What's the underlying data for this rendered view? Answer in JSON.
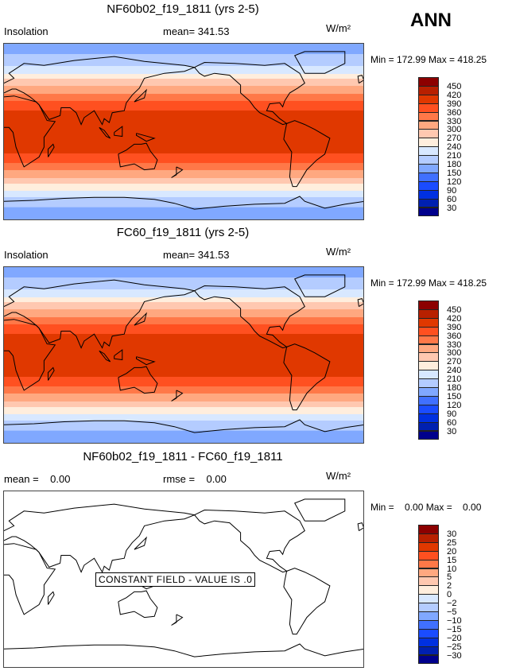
{
  "season": "ANN",
  "units": "W/m²",
  "chart_data": [
    {
      "type": "heatmap",
      "title": "NF60b02_f19_1811 (yrs 2-5)",
      "variable": "Insolation",
      "mean_label": "mean= 341.53",
      "minmax": "Min = 172.99 Max = 418.25",
      "levels": [
        "450",
        "420",
        "390",
        "360",
        "330",
        "300",
        "270",
        "240",
        "210",
        "180",
        "150",
        "120",
        "90",
        "60",
        "30"
      ],
      "bands": [
        {
          "lat_n": 90,
          "lat_s": 79.5,
          "color_index": 5
        },
        {
          "lat_n": 79.5,
          "lat_s": 67.4,
          "color_index": 6
        },
        {
          "lat_n": 67.4,
          "lat_s": 59.3,
          "color_index": 7
        },
        {
          "lat_n": 59.3,
          "lat_s": 54.5,
          "color_index": 8
        },
        {
          "lat_n": 54.5,
          "lat_s": 47.2,
          "color_index": 9
        },
        {
          "lat_n": 47.2,
          "lat_s": 39.1,
          "color_index": 10
        },
        {
          "lat_n": 39.1,
          "lat_s": 31.9,
          "color_index": 11
        },
        {
          "lat_n": 31.9,
          "lat_s": 22.2,
          "color_index": 12
        },
        {
          "lat_n": 22.2,
          "lat_s": -21.4,
          "color_index": 13
        },
        {
          "lat_n": -21.4,
          "lat_s": -31.1,
          "color_index": 12
        },
        {
          "lat_n": -31.1,
          "lat_s": -38.3,
          "color_index": 11
        },
        {
          "lat_n": -38.3,
          "lat_s": -46.4,
          "color_index": 10
        },
        {
          "lat_n": -46.4,
          "lat_s": -52.1,
          "color_index": 9
        },
        {
          "lat_n": -52.1,
          "lat_s": -59.3,
          "color_index": 8
        },
        {
          "lat_n": -59.3,
          "lat_s": -65.8,
          "color_index": 7
        },
        {
          "lat_n": -65.8,
          "lat_s": -76,
          "color_index": 6
        },
        {
          "lat_n": -76,
          "lat_s": -90,
          "color_index": 5
        }
      ]
    },
    {
      "type": "heatmap",
      "title": "FC60_f19_1811 (yrs 2-5)",
      "variable": "Insolation",
      "mean_label": "mean= 341.53",
      "minmax": "Min = 172.99 Max = 418.25",
      "levels": [
        "450",
        "420",
        "390",
        "360",
        "330",
        "300",
        "270",
        "240",
        "210",
        "180",
        "150",
        "120",
        "90",
        "60",
        "30"
      ],
      "bands": "same_as_panel_1"
    },
    {
      "type": "heatmap",
      "title": "NF60b02_f19_1811 - FC60_f19_1811",
      "mean_label": "mean =    0.00",
      "rmse_label": "rmse =    0.00",
      "minmax": "Min =    0.00 Max =    0.00",
      "annotation": "CONSTANT FIELD - VALUE IS .0",
      "levels": [
        "30",
        "25",
        "20",
        "15",
        "10",
        "5",
        "2",
        "0",
        "−2",
        "−5",
        "−10",
        "−15",
        "−20",
        "−25",
        "−30"
      ]
    }
  ],
  "colors": [
    "#8c0000",
    "#b82000",
    "#e03800",
    "#ff5020",
    "#ff7848",
    "#ffa880",
    "#ffc8b0",
    "#ffeedd",
    "#d8e8ff",
    "#b4ccff",
    "#80a8ff",
    "#4070ff",
    "#1a4cff",
    "#0030e0",
    "#0020b0",
    "#00008c"
  ]
}
